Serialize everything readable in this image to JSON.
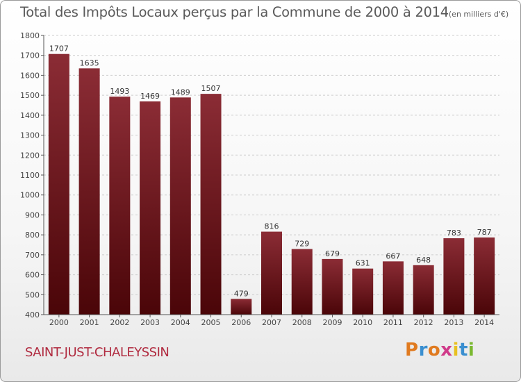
{
  "header": {
    "title": "Total des Impôts Locaux perçus par la Commune de 2000 à 2014",
    "unit": "(en milliers d'€)"
  },
  "footer": {
    "commune": "SAINT-JUST-CHALEYSSIN",
    "logo_text": "Proxiti",
    "logo_colors": [
      "#e07a1f",
      "#3a8fd0",
      "#e07a1f",
      "#d03a8a",
      "#e8c020",
      "#3a8fd0",
      "#7ab830"
    ]
  },
  "colors": {
    "bar_top": "#8b2c35",
    "bar_bottom": "#4a0508",
    "axis": "#555555",
    "grid": "#cccccc"
  },
  "chart_data": {
    "type": "bar",
    "title": "Total des Impôts Locaux perçus par la Commune de 2000 à 2014",
    "ylabel": "(en milliers d'€)",
    "xlabel": "",
    "categories": [
      "2000",
      "2001",
      "2002",
      "2003",
      "2004",
      "2005",
      "2006",
      "2007",
      "2008",
      "2009",
      "2010",
      "2011",
      "2012",
      "2013",
      "2014"
    ],
    "values": [
      1707,
      1635,
      1493,
      1469,
      1489,
      1507,
      479,
      816,
      729,
      679,
      631,
      667,
      648,
      783,
      787
    ],
    "ylim": [
      400,
      1800
    ],
    "yticks": [
      400,
      500,
      600,
      700,
      800,
      900,
      1000,
      1100,
      1200,
      1300,
      1400,
      1500,
      1600,
      1700,
      1800
    ],
    "grid": "horizontal dashed",
    "legend": "none"
  }
}
